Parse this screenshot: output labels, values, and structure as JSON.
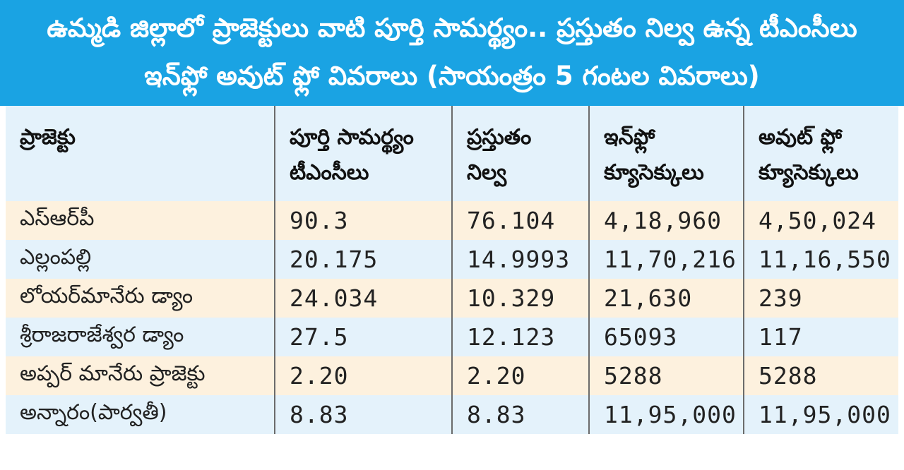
{
  "title": {
    "line1": "ఉమ్మడి జిల్లాలో ప్రాజెక్టులు వాటి పూర్తి సామర్థ్యం.. ప్రస్తుతం నిల్వ ఉన్న టీఎంసీలు",
    "line2": "ఇన్‌ఫ్లో అవుట్ ఫ్లో వివరాలు (సాయంత్రం 5 గంటల వివరాలు)"
  },
  "table": {
    "headers": [
      {
        "line1": "ప్రాజెక్టు",
        "line2": ""
      },
      {
        "line1": "పూర్తి సామర్థ్యం",
        "line2": "టీఎంసీలు"
      },
      {
        "line1": "ప్రస్తుతం",
        "line2": "నిల్వ"
      },
      {
        "line1": "ఇన్‌ఫ్లో",
        "line2": "క్యూసెక్కులు"
      },
      {
        "line1": "అవుట్ ఫ్లో",
        "line2": "క్యూసెక్కులు"
      }
    ],
    "rows": [
      {
        "project": "ఎస్ఆర్‌పీ",
        "capacity": "90.3",
        "current": "76.104",
        "inflow": "4,18,960",
        "outflow": "4,50,024"
      },
      {
        "project": "ఎల్లంపల్లి",
        "capacity": "20.175",
        "current": "14.9993",
        "inflow": "11,70,216",
        "outflow": "11,16,550"
      },
      {
        "project": "లోయర్‌మానేరు డ్యాం",
        "capacity": "24.034",
        "current": "10.329",
        "inflow": "21,630",
        "outflow": "239"
      },
      {
        "project": "శ్రీరాజరాజేశ్వర డ్యాం",
        "capacity": "27.5",
        "current": "12.123",
        "inflow": "65093",
        "outflow": "117"
      },
      {
        "project": "అప్పర్ మానేరు ప్రాజెక్టు",
        "capacity": "2.20",
        "current": "2.20",
        "inflow": "5288",
        "outflow": "5288"
      },
      {
        "project": "అన్నారం(పార్వతీ)",
        "capacity": "8.83",
        "current": "8.83",
        "inflow": "11,95,000",
        "outflow": "11,95,000"
      }
    ]
  },
  "colors": {
    "title_band": "#1aa3e3",
    "header_row": "#e4f2fb",
    "row_peach": "#fdf1de",
    "row_blue": "#e4f2fb"
  }
}
